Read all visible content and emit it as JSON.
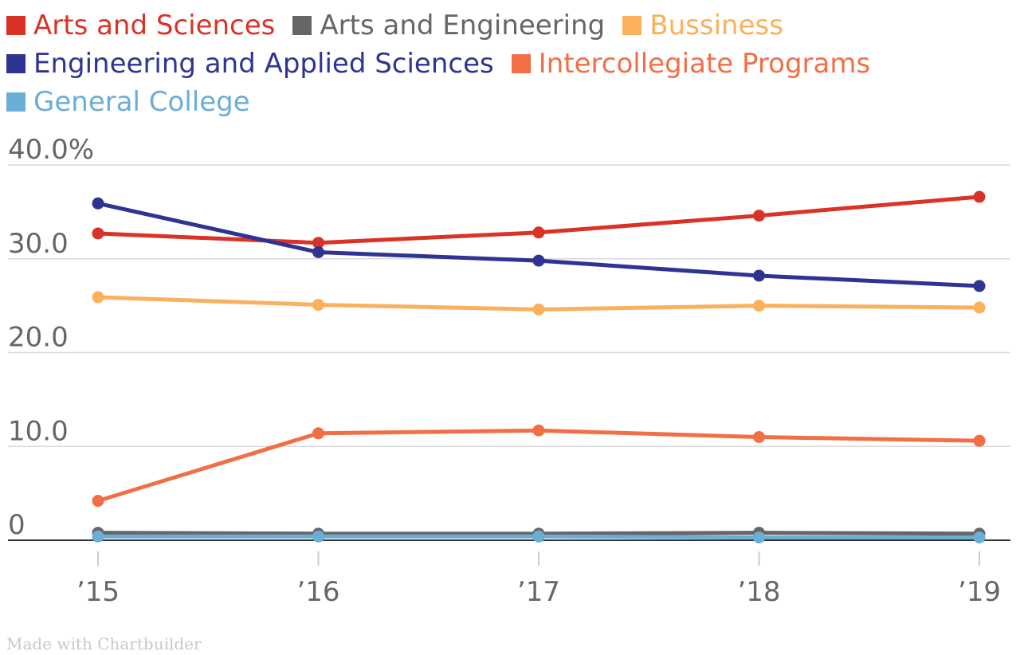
{
  "chart_data": {
    "type": "line",
    "x": [
      "’15",
      "’16",
      "’17",
      "’18",
      "’19"
    ],
    "series": [
      {
        "name": "Arts and Sciences",
        "color": "#d93327",
        "values": [
          32.7,
          31.7,
          32.8,
          34.6,
          36.6
        ]
      },
      {
        "name": "Arts and Engineering",
        "color": "#666666",
        "values": [
          0.8,
          0.7,
          0.7,
          0.8,
          0.7
        ]
      },
      {
        "name": "Bussiness",
        "color": "#fbb05c",
        "values": [
          25.9,
          25.1,
          24.6,
          25.0,
          24.8
        ]
      },
      {
        "name": "Engineering and Applied Sciences",
        "color": "#2f3492",
        "values": [
          35.9,
          30.7,
          29.8,
          28.2,
          27.1
        ]
      },
      {
        "name": "Intercollegiate Programs",
        "color": "#f26f45",
        "values": [
          4.2,
          11.4,
          11.7,
          11.0,
          10.6
        ]
      },
      {
        "name": "General College",
        "color": "#6aaed6",
        "values": [
          0.4,
          0.4,
          0.4,
          0.3,
          0.3
        ]
      }
    ],
    "y_ticks": [
      0,
      10,
      20,
      30,
      40
    ],
    "y_tick_labels": [
      "0",
      "10.0",
      "20.0",
      "30.0",
      "40.0%"
    ],
    "ylim": [
      0,
      40
    ],
    "title": "",
    "xlabel": "",
    "ylabel": "",
    "grid": true,
    "legend": "top-left"
  },
  "credit": "Made with Chartbuilder"
}
